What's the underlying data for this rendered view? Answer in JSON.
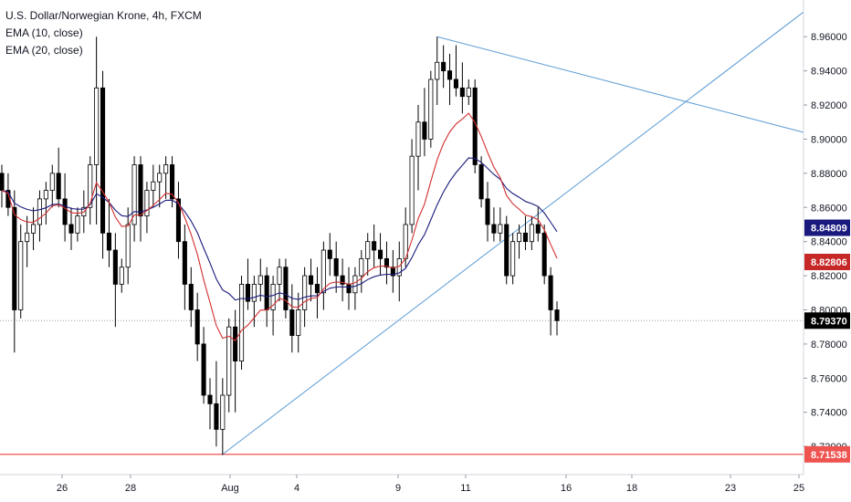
{
  "legend": {
    "symbol_line": "U.S. Dollar/Norwegian Krone, 4h, FXCM",
    "ema10_label": "EMA (10, close)",
    "ema20_label": "EMA (20, close)"
  },
  "chart_data": {
    "type": "candlestick",
    "ylim": [
      8.7035,
      8.9815
    ],
    "y_ticks": [
      "8.96000",
      "8.94000",
      "8.92000",
      "8.90000",
      "8.88000",
      "8.86000",
      "8.84000",
      "8.82000",
      "8.80000",
      "8.78000",
      "8.76000",
      "8.74000",
      "8.72000"
    ],
    "x_ticks": [
      "26",
      "28",
      "Aug",
      "4",
      "9",
      "11",
      "16",
      "18",
      "23",
      "25"
    ],
    "colors": {
      "ema10": "#d32f2f",
      "ema20": "#1a1a7e",
      "trendline": "#5b9bd5",
      "support": "#ef5350",
      "price_line": "#9aa0a6",
      "candle": "#000000"
    },
    "price_labels": [
      {
        "name": "ema20",
        "text": "8.84809",
        "value": 8.84809,
        "color": "#1a1a7e"
      },
      {
        "name": "ema10",
        "text": "8.82806",
        "value": 8.82806,
        "color": "#c62828"
      },
      {
        "name": "last",
        "text": "8.79370",
        "value": 8.7937,
        "color": "#000000"
      },
      {
        "name": "support",
        "text": "8.71538",
        "value": 8.71538,
        "color": "#ef5350"
      }
    ],
    "support_level": 8.71538,
    "last_price": 8.7937,
    "candles": [
      [
        8.88,
        8.885,
        8.86,
        8.87
      ],
      [
        8.87,
        8.88,
        8.855,
        8.86
      ],
      [
        8.86,
        8.87,
        8.775,
        8.8
      ],
      [
        8.8,
        8.85,
        8.795,
        8.84
      ],
      [
        8.84,
        8.855,
        8.825,
        8.845
      ],
      [
        8.845,
        8.86,
        8.835,
        8.85
      ],
      [
        8.85,
        8.87,
        8.84,
        8.865
      ],
      [
        8.865,
        8.875,
        8.85,
        8.87
      ],
      [
        8.87,
        8.885,
        8.86,
        8.88
      ],
      [
        8.88,
        8.895,
        8.86,
        8.865
      ],
      [
        8.865,
        8.88,
        8.84,
        8.85
      ],
      [
        8.85,
        8.86,
        8.835,
        8.845
      ],
      [
        8.845,
        8.86,
        8.84,
        8.855
      ],
      [
        8.855,
        8.87,
        8.845,
        8.86
      ],
      [
        8.86,
        8.89,
        8.85,
        8.885
      ],
      [
        8.885,
        8.96,
        8.85,
        8.93
      ],
      [
        8.93,
        8.94,
        8.83,
        8.845
      ],
      [
        8.845,
        8.865,
        8.825,
        8.835
      ],
      [
        8.835,
        8.845,
        8.79,
        8.815
      ],
      [
        8.815,
        8.83,
        8.81,
        8.825
      ],
      [
        8.825,
        8.86,
        8.815,
        8.85
      ],
      [
        8.85,
        8.89,
        8.84,
        8.885
      ],
      [
        8.885,
        8.89,
        8.84,
        8.855
      ],
      [
        8.855,
        8.875,
        8.845,
        8.87
      ],
      [
        8.87,
        8.885,
        8.86,
        8.875
      ],
      [
        8.875,
        8.885,
        8.86,
        8.88
      ],
      [
        8.88,
        8.89,
        8.865,
        8.885
      ],
      [
        8.885,
        8.89,
        8.86,
        8.865
      ],
      [
        8.865,
        8.875,
        8.83,
        8.84
      ],
      [
        8.84,
        8.85,
        8.8,
        8.815
      ],
      [
        8.815,
        8.825,
        8.79,
        8.8
      ],
      [
        8.8,
        8.81,
        8.77,
        8.78
      ],
      [
        8.78,
        8.79,
        8.745,
        8.75
      ],
      [
        8.75,
        8.76,
        8.73,
        8.745
      ],
      [
        8.745,
        8.77,
        8.72,
        8.73
      ],
      [
        8.73,
        8.76,
        8.715,
        8.75
      ],
      [
        8.75,
        8.795,
        8.74,
        8.79
      ],
      [
        8.79,
        8.8,
        8.74,
        8.77
      ],
      [
        8.77,
        8.82,
        8.765,
        8.815
      ],
      [
        8.815,
        8.83,
        8.8,
        8.805
      ],
      [
        8.805,
        8.82,
        8.79,
        8.815
      ],
      [
        8.815,
        8.83,
        8.805,
        8.82
      ],
      [
        8.82,
        8.825,
        8.79,
        8.8
      ],
      [
        8.8,
        8.82,
        8.785,
        8.815
      ],
      [
        8.815,
        8.83,
        8.805,
        8.825
      ],
      [
        8.825,
        8.83,
        8.795,
        8.8
      ],
      [
        8.8,
        8.815,
        8.775,
        8.785
      ],
      [
        8.785,
        8.81,
        8.775,
        8.8
      ],
      [
        8.8,
        8.825,
        8.79,
        8.82
      ],
      [
        8.82,
        8.83,
        8.805,
        8.815
      ],
      [
        8.815,
        8.825,
        8.795,
        8.81
      ],
      [
        8.81,
        8.84,
        8.8,
        8.835
      ],
      [
        8.835,
        8.845,
        8.82,
        8.83
      ],
      [
        8.83,
        8.84,
        8.81,
        8.82
      ],
      [
        8.82,
        8.83,
        8.805,
        8.815
      ],
      [
        8.815,
        8.825,
        8.8,
        8.81
      ],
      [
        8.81,
        8.825,
        8.8,
        8.82
      ],
      [
        8.82,
        8.835,
        8.81,
        8.83
      ],
      [
        8.83,
        8.845,
        8.82,
        8.84
      ],
      [
        8.84,
        8.85,
        8.825,
        8.835
      ],
      [
        8.835,
        8.845,
        8.82,
        8.83
      ],
      [
        8.83,
        8.84,
        8.815,
        8.825
      ],
      [
        8.825,
        8.835,
        8.81,
        8.82
      ],
      [
        8.82,
        8.84,
        8.805,
        8.83
      ],
      [
        8.83,
        8.86,
        8.825,
        8.85
      ],
      [
        8.85,
        8.9,
        8.845,
        8.89
      ],
      [
        8.89,
        8.92,
        8.87,
        8.91
      ],
      [
        8.91,
        8.93,
        8.89,
        8.9
      ],
      [
        8.9,
        8.94,
        8.895,
        8.935
      ],
      [
        8.935,
        8.96,
        8.92,
        8.945
      ],
      [
        8.945,
        8.955,
        8.93,
        8.94
      ],
      [
        8.94,
        8.95,
        8.92,
        8.935
      ],
      [
        8.935,
        8.955,
        8.925,
        8.93
      ],
      [
        8.93,
        8.945,
        8.915,
        8.925
      ],
      [
        8.925,
        8.935,
        8.92,
        8.93
      ],
      [
        8.93,
        8.935,
        8.88,
        8.885
      ],
      [
        8.885,
        8.89,
        8.86,
        8.865
      ],
      [
        8.865,
        8.875,
        8.84,
        8.85
      ],
      [
        8.85,
        8.86,
        8.84,
        8.845
      ],
      [
        8.845,
        8.86,
        8.84,
        8.85
      ],
      [
        8.85,
        8.855,
        8.815,
        8.82
      ],
      [
        8.82,
        8.845,
        8.815,
        8.84
      ],
      [
        8.84,
        8.85,
        8.83,
        8.845
      ],
      [
        8.845,
        8.855,
        8.835,
        8.84
      ],
      [
        8.84,
        8.855,
        8.835,
        8.85
      ],
      [
        8.85,
        8.86,
        8.84,
        8.845
      ],
      [
        8.845,
        8.85,
        8.815,
        8.82
      ],
      [
        8.82,
        8.825,
        8.785,
        8.8
      ],
      [
        8.8,
        8.805,
        8.785,
        8.7937
      ]
    ]
  }
}
